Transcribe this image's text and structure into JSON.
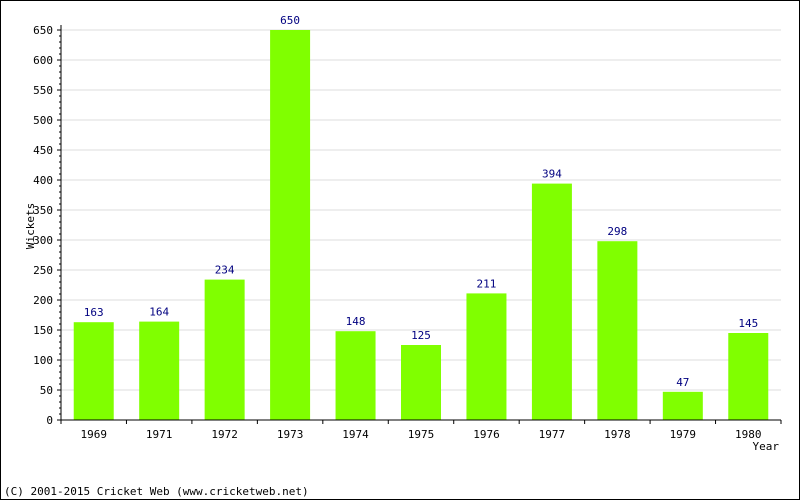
{
  "chart_data": {
    "type": "bar",
    "title": "",
    "xlabel": "Year",
    "ylabel": "Wickets",
    "categories": [
      "1969",
      "1971",
      "1972",
      "1973",
      "1974",
      "1975",
      "1976",
      "1977",
      "1978",
      "1979",
      "1980"
    ],
    "values": [
      163,
      164,
      234,
      650,
      148,
      125,
      211,
      394,
      298,
      47,
      145
    ],
    "ylim": [
      0,
      650
    ],
    "yticks": [
      0,
      50,
      100,
      150,
      200,
      250,
      300,
      350,
      400,
      450,
      500,
      550,
      600,
      650
    ],
    "grid": true,
    "bar_color": "#80ff00"
  },
  "footer": {
    "copyright": "(C) 2001-2015 Cricket Web (www.cricketweb.net)"
  }
}
